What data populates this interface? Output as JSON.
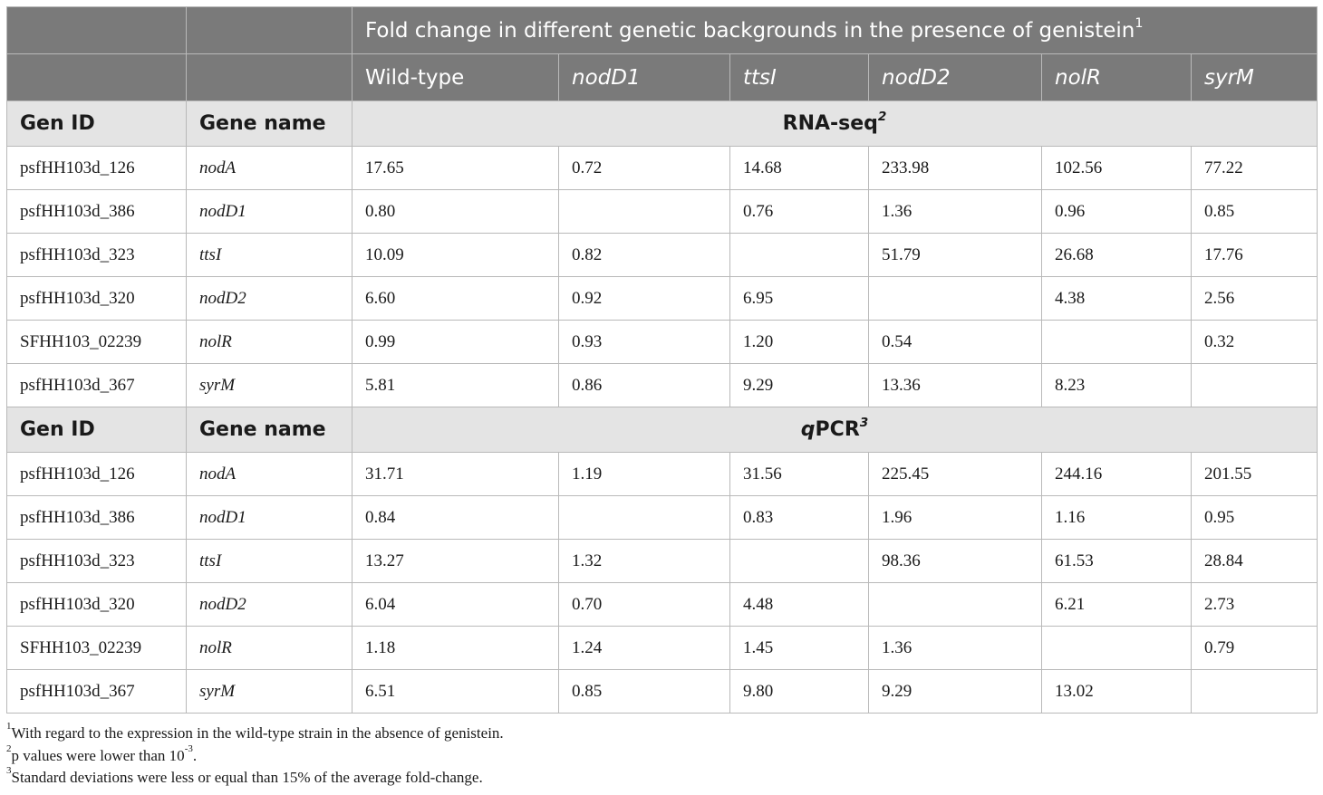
{
  "header": {
    "title": "Fold change in different genetic backgrounds in the presence of genistein",
    "title_sup": "1",
    "columns": [
      "Wild-type",
      "nodD1",
      "ttsI",
      "nodD2",
      "nolR",
      "syrM"
    ]
  },
  "sections": [
    {
      "col1": "Gen ID",
      "col2": "Gene name",
      "method_prefix": "",
      "method": "RNA-seq",
      "method_sup": "2",
      "rows": [
        {
          "gen_id": "psfHH103d_126",
          "gene": "nodA",
          "values": [
            "17.65",
            "0.72",
            "14.68",
            "233.98",
            "102.56",
            "77.22"
          ]
        },
        {
          "gen_id": "psfHH103d_386",
          "gene": "nodD1",
          "values": [
            "0.80",
            "",
            "0.76",
            "1.36",
            "0.96",
            "0.85"
          ]
        },
        {
          "gen_id": "psfHH103d_323",
          "gene": "ttsI",
          "values": [
            "10.09",
            "0.82",
            "",
            "51.79",
            "26.68",
            "17.76"
          ]
        },
        {
          "gen_id": "psfHH103d_320",
          "gene": "nodD2",
          "values": [
            "6.60",
            "0.92",
            "6.95",
            "",
            "4.38",
            "2.56"
          ]
        },
        {
          "gen_id": "SFHH103_02239",
          "gene": "nolR",
          "values": [
            "0.99",
            "0.93",
            "1.20",
            "0.54",
            "",
            "0.32"
          ]
        },
        {
          "gen_id": "psfHH103d_367",
          "gene": "syrM",
          "values": [
            "5.81",
            "0.86",
            "9.29",
            "13.36",
            "8.23",
            ""
          ]
        }
      ]
    },
    {
      "col1": "Gen ID",
      "col2": "Gene name",
      "method_prefix": "q",
      "method": "PCR",
      "method_sup": "3",
      "rows": [
        {
          "gen_id": "psfHH103d_126",
          "gene": "nodA",
          "values": [
            "31.71",
            "1.19",
            "31.56",
            "225.45",
            "244.16",
            "201.55"
          ]
        },
        {
          "gen_id": "psfHH103d_386",
          "gene": "nodD1",
          "values": [
            "0.84",
            "",
            "0.83",
            "1.96",
            "1.16",
            "0.95"
          ]
        },
        {
          "gen_id": "psfHH103d_323",
          "gene": "ttsI",
          "values": [
            "13.27",
            "1.32",
            "",
            "98.36",
            "61.53",
            "28.84"
          ]
        },
        {
          "gen_id": "psfHH103d_320",
          "gene": "nodD2",
          "values": [
            "6.04",
            "0.70",
            "4.48",
            "",
            "6.21",
            "2.73"
          ]
        },
        {
          "gen_id": "SFHH103_02239",
          "gene": "nolR",
          "values": [
            "1.18",
            "1.24",
            "1.45",
            "1.36",
            "",
            "0.79"
          ]
        },
        {
          "gen_id": "psfHH103d_367",
          "gene": "syrM",
          "values": [
            "6.51",
            "0.85",
            "9.80",
            "9.29",
            "13.02",
            ""
          ]
        }
      ]
    }
  ],
  "footnotes": [
    {
      "sup": "1",
      "text": "With regard to the expression in the wild-type strain in the absence of genistein."
    },
    {
      "sup": "2",
      "text_before": "p values were lower than 10",
      "exp": "-3",
      "text_after": "."
    },
    {
      "sup": "3",
      "text": "Standard deviations were less or equal than 15% of the average fold-change."
    }
  ]
}
